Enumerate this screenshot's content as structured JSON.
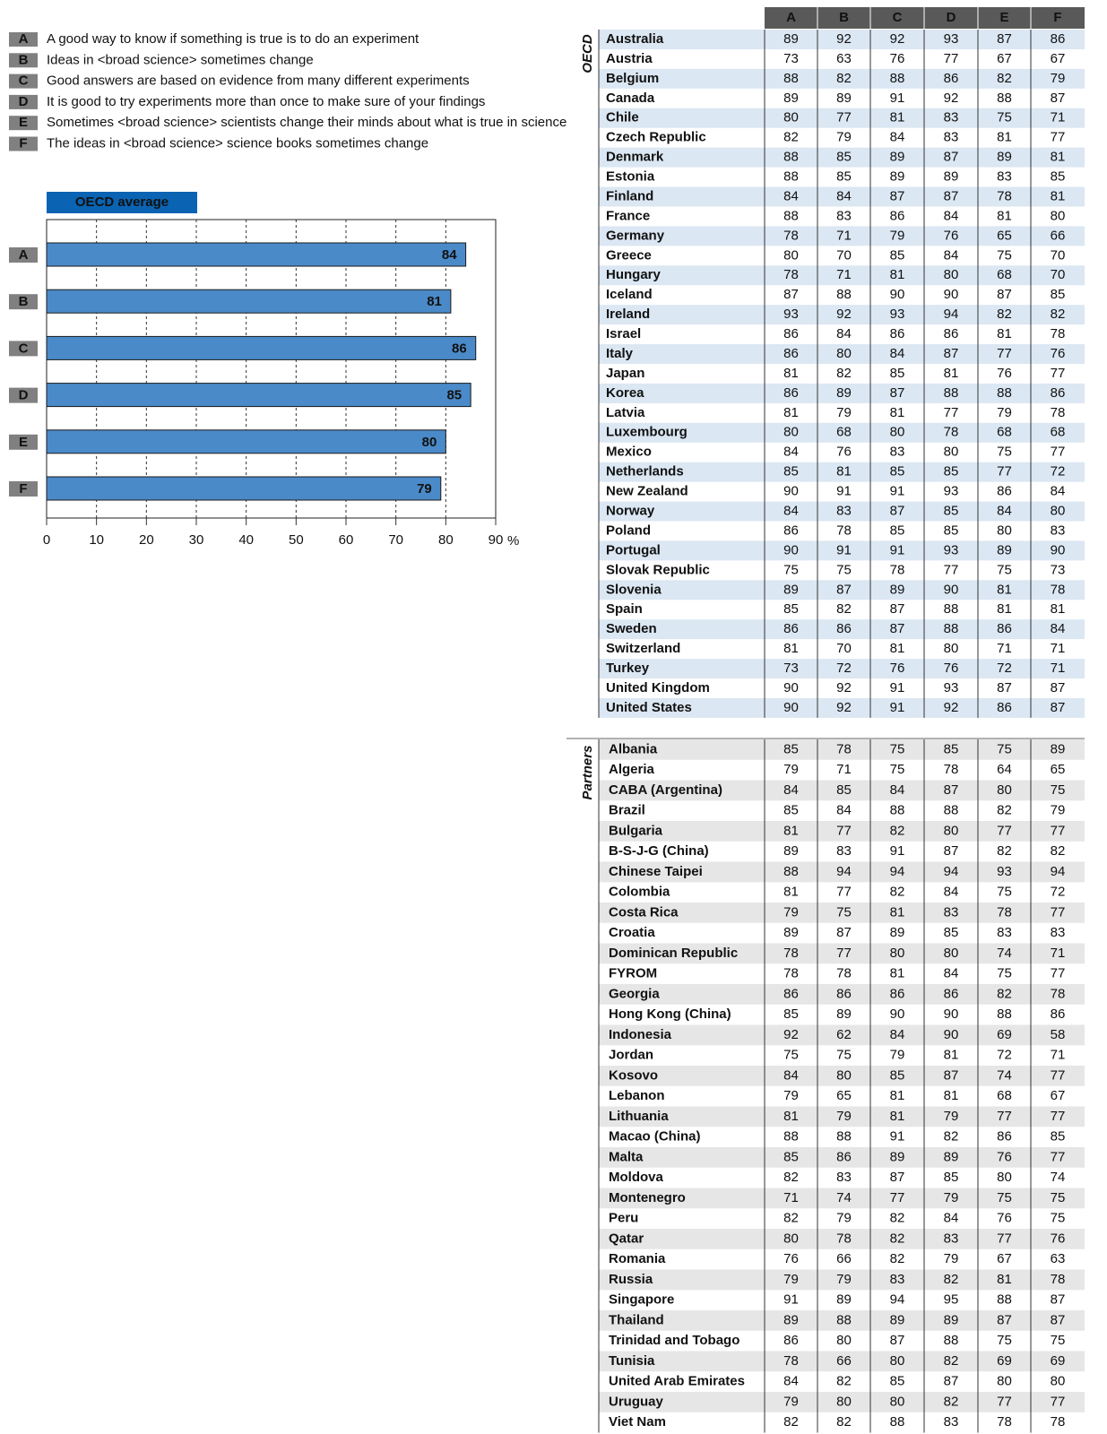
{
  "legend": [
    {
      "letter": "A",
      "text": "A good way to know if something is true is to do an experiment"
    },
    {
      "letter": "B",
      "text": "Ideas in <broad science> sometimes change"
    },
    {
      "letter": "C",
      "text": "Good answers are based on evidence from many different experiments"
    },
    {
      "letter": "D",
      "text": "It is good to try experiments more than once to make sure of your findings"
    },
    {
      "letter": "E",
      "text": "Sometimes <broad science> scientists change their minds about what is true in science"
    },
    {
      "letter": "F",
      "text": "The ideas in <broad science> science books sometimes change"
    }
  ],
  "chart_data": {
    "type": "bar",
    "orientation": "horizontal",
    "title": "OECD average",
    "categories": [
      "A",
      "B",
      "C",
      "D",
      "E",
      "F"
    ],
    "values": [
      84,
      81,
      86,
      85,
      80,
      79
    ],
    "color": "#4a8ac8",
    "xlim": [
      0,
      90
    ],
    "xticks": [
      0,
      10,
      20,
      30,
      40,
      50,
      60,
      70,
      80,
      90
    ],
    "x_unit": "%",
    "grid": true
  },
  "table": {
    "columns": [
      "A",
      "B",
      "C",
      "D",
      "E",
      "F"
    ],
    "groups": [
      {
        "label": "OECD",
        "rows": [
          {
            "name": "Australia",
            "values": [
              89,
              92,
              92,
              93,
              87,
              86
            ]
          },
          {
            "name": "Austria",
            "values": [
              73,
              63,
              76,
              77,
              67,
              67
            ]
          },
          {
            "name": "Belgium",
            "values": [
              88,
              82,
              88,
              86,
              82,
              79
            ]
          },
          {
            "name": "Canada",
            "values": [
              89,
              89,
              91,
              92,
              88,
              87
            ]
          },
          {
            "name": "Chile",
            "values": [
              80,
              77,
              81,
              83,
              75,
              71
            ]
          },
          {
            "name": "Czech Republic",
            "values": [
              82,
              79,
              84,
              83,
              81,
              77
            ]
          },
          {
            "name": "Denmark",
            "values": [
              88,
              85,
              89,
              87,
              89,
              81
            ]
          },
          {
            "name": "Estonia",
            "values": [
              88,
              85,
              89,
              89,
              83,
              85
            ]
          },
          {
            "name": "Finland",
            "values": [
              84,
              84,
              87,
              87,
              78,
              81
            ]
          },
          {
            "name": "France",
            "values": [
              88,
              83,
              86,
              84,
              81,
              80
            ]
          },
          {
            "name": "Germany",
            "values": [
              78,
              71,
              79,
              76,
              65,
              66
            ]
          },
          {
            "name": "Greece",
            "values": [
              80,
              70,
              85,
              84,
              75,
              70
            ]
          },
          {
            "name": "Hungary",
            "values": [
              78,
              71,
              81,
              80,
              68,
              70
            ]
          },
          {
            "name": "Iceland",
            "values": [
              87,
              88,
              90,
              90,
              87,
              85
            ]
          },
          {
            "name": "Ireland",
            "values": [
              93,
              92,
              93,
              94,
              82,
              82
            ]
          },
          {
            "name": "Israel",
            "values": [
              86,
              84,
              86,
              86,
              81,
              78
            ]
          },
          {
            "name": "Italy",
            "values": [
              86,
              80,
              84,
              87,
              77,
              76
            ]
          },
          {
            "name": "Japan",
            "values": [
              81,
              82,
              85,
              81,
              76,
              77
            ]
          },
          {
            "name": "Korea",
            "values": [
              86,
              89,
              87,
              88,
              88,
              86
            ]
          },
          {
            "name": "Latvia",
            "values": [
              81,
              79,
              81,
              77,
              79,
              78
            ]
          },
          {
            "name": "Luxembourg",
            "values": [
              80,
              68,
              80,
              78,
              68,
              68
            ]
          },
          {
            "name": "Mexico",
            "values": [
              84,
              76,
              83,
              80,
              75,
              77
            ]
          },
          {
            "name": "Netherlands",
            "values": [
              85,
              81,
              85,
              85,
              77,
              72
            ]
          },
          {
            "name": "New Zealand",
            "values": [
              90,
              91,
              91,
              93,
              86,
              84
            ]
          },
          {
            "name": "Norway",
            "values": [
              84,
              83,
              87,
              85,
              84,
              80
            ]
          },
          {
            "name": "Poland",
            "values": [
              86,
              78,
              85,
              85,
              80,
              83
            ]
          },
          {
            "name": "Portugal",
            "values": [
              90,
              91,
              91,
              93,
              89,
              90
            ]
          },
          {
            "name": "Slovak Republic",
            "values": [
              75,
              75,
              78,
              77,
              75,
              73
            ]
          },
          {
            "name": "Slovenia",
            "values": [
              89,
              87,
              89,
              90,
              81,
              78
            ]
          },
          {
            "name": "Spain",
            "values": [
              85,
              82,
              87,
              88,
              81,
              81
            ]
          },
          {
            "name": "Sweden",
            "values": [
              86,
              86,
              87,
              88,
              86,
              84
            ]
          },
          {
            "name": "Switzerland",
            "values": [
              81,
              70,
              81,
              80,
              71,
              71
            ]
          },
          {
            "name": "Turkey",
            "values": [
              73,
              72,
              76,
              76,
              72,
              71
            ]
          },
          {
            "name": "United Kingdom",
            "values": [
              90,
              92,
              91,
              93,
              87,
              87
            ]
          },
          {
            "name": "United States",
            "values": [
              90,
              92,
              91,
              92,
              86,
              87
            ]
          }
        ]
      },
      {
        "label": "Partners",
        "rows": [
          {
            "name": "Albania",
            "values": [
              85,
              78,
              75,
              85,
              75,
              89
            ]
          },
          {
            "name": "Algeria",
            "values": [
              79,
              71,
              75,
              78,
              64,
              65
            ]
          },
          {
            "name": "CABA (Argentina)",
            "values": [
              84,
              85,
              84,
              87,
              80,
              75
            ]
          },
          {
            "name": "Brazil",
            "values": [
              85,
              84,
              88,
              88,
              82,
              79
            ]
          },
          {
            "name": "Bulgaria",
            "values": [
              81,
              77,
              82,
              80,
              77,
              77
            ]
          },
          {
            "name": "B-S-J-G (China)",
            "values": [
              89,
              83,
              91,
              87,
              82,
              82
            ]
          },
          {
            "name": "Chinese Taipei",
            "values": [
              88,
              94,
              94,
              94,
              93,
              94
            ]
          },
          {
            "name": "Colombia",
            "values": [
              81,
              77,
              82,
              84,
              75,
              72
            ]
          },
          {
            "name": "Costa Rica",
            "values": [
              79,
              75,
              81,
              83,
              78,
              77
            ]
          },
          {
            "name": "Croatia",
            "values": [
              89,
              87,
              89,
              85,
              83,
              83
            ]
          },
          {
            "name": "Dominican Republic",
            "values": [
              78,
              77,
              80,
              80,
              74,
              71
            ]
          },
          {
            "name": "FYROM",
            "values": [
              78,
              78,
              81,
              84,
              75,
              77
            ]
          },
          {
            "name": "Georgia",
            "values": [
              86,
              86,
              86,
              86,
              82,
              78
            ]
          },
          {
            "name": "Hong Kong (China)",
            "values": [
              85,
              89,
              90,
              90,
              88,
              86
            ]
          },
          {
            "name": "Indonesia",
            "values": [
              92,
              62,
              84,
              90,
              69,
              58
            ]
          },
          {
            "name": "Jordan",
            "values": [
              75,
              75,
              79,
              81,
              72,
              71
            ]
          },
          {
            "name": "Kosovo",
            "values": [
              84,
              80,
              85,
              87,
              74,
              77
            ]
          },
          {
            "name": "Lebanon",
            "values": [
              79,
              65,
              81,
              81,
              68,
              67
            ]
          },
          {
            "name": "Lithuania",
            "values": [
              81,
              79,
              81,
              79,
              77,
              77
            ]
          },
          {
            "name": "Macao (China)",
            "values": [
              88,
              88,
              91,
              82,
              86,
              85
            ]
          },
          {
            "name": "Malta",
            "values": [
              85,
              86,
              89,
              89,
              76,
              77
            ]
          },
          {
            "name": "Moldova",
            "values": [
              82,
              83,
              87,
              85,
              80,
              74
            ]
          },
          {
            "name": "Montenegro",
            "values": [
              71,
              74,
              77,
              79,
              75,
              75
            ]
          },
          {
            "name": "Peru",
            "values": [
              82,
              79,
              82,
              84,
              76,
              75
            ]
          },
          {
            "name": "Qatar",
            "values": [
              80,
              78,
              82,
              83,
              77,
              76
            ]
          },
          {
            "name": "Romania",
            "values": [
              76,
              66,
              82,
              79,
              67,
              63
            ]
          },
          {
            "name": "Russia",
            "values": [
              79,
              79,
              83,
              82,
              81,
              78
            ]
          },
          {
            "name": "Singapore",
            "values": [
              91,
              89,
              94,
              95,
              88,
              87
            ]
          },
          {
            "name": "Thailand",
            "values": [
              89,
              88,
              89,
              89,
              87,
              87
            ]
          },
          {
            "name": "Trinidad and Tobago",
            "values": [
              86,
              80,
              87,
              88,
              75,
              75
            ]
          },
          {
            "name": "Tunisia",
            "values": [
              78,
              66,
              80,
              82,
              69,
              69
            ]
          },
          {
            "name": "United Arab Emirates",
            "values": [
              84,
              82,
              85,
              87,
              80,
              80
            ]
          },
          {
            "name": "Uruguay",
            "values": [
              79,
              80,
              80,
              82,
              77,
              77
            ]
          },
          {
            "name": "Viet Nam",
            "values": [
              82,
              82,
              88,
              83,
              78,
              78
            ]
          }
        ]
      }
    ]
  }
}
